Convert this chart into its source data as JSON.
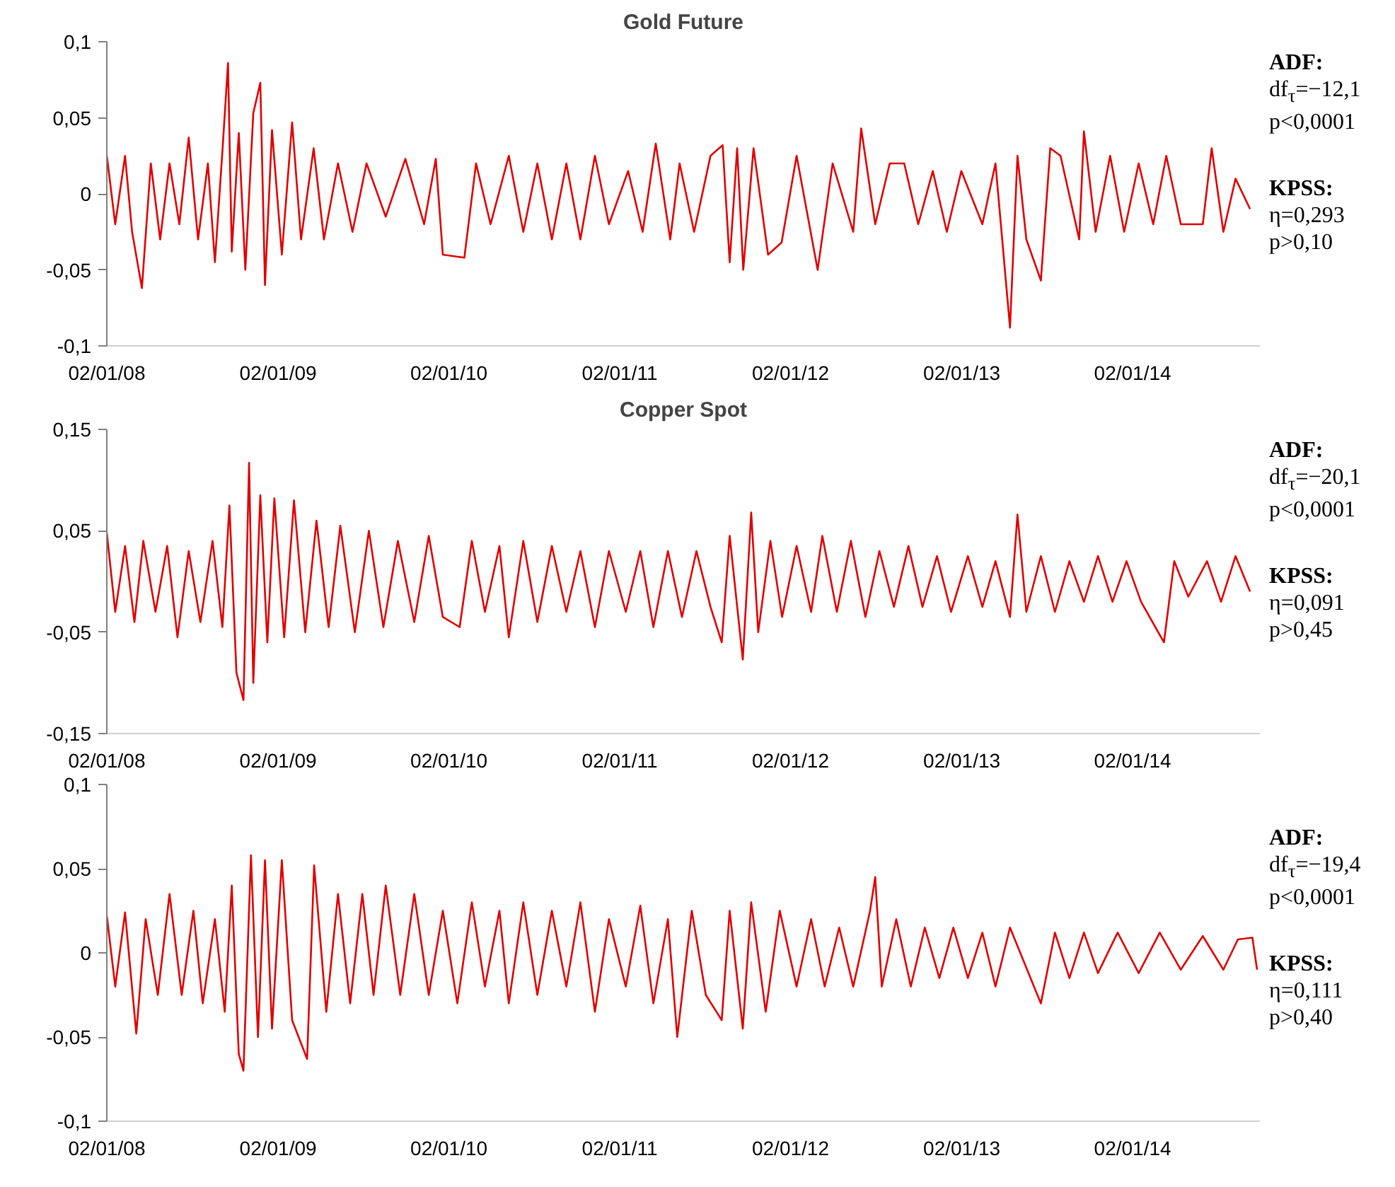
{
  "chart_data": [
    {
      "type": "line",
      "title": "Gold Future",
      "color": "#e00000",
      "x": [
        "2008-01-02",
        "2008-01-20",
        "2008-02-10",
        "2008-02-25",
        "2008-03-17",
        "2008-04-05",
        "2008-04-25",
        "2008-05-15",
        "2008-06-05",
        "2008-06-25",
        "2008-07-15",
        "2008-08-05",
        "2008-08-20",
        "2008-09-05",
        "2008-09-17",
        "2008-09-25",
        "2008-10-10",
        "2008-10-24",
        "2008-11-10",
        "2008-11-25",
        "2008-12-05",
        "2008-12-20",
        "2009-01-10",
        "2009-02-01",
        "2009-02-20",
        "2009-03-19",
        "2009-04-10",
        "2009-05-10",
        "2009-06-10",
        "2009-07-10",
        "2009-08-20",
        "2009-10-01",
        "2009-11-10",
        "2009-12-05",
        "2009-12-20",
        "2010-02-04",
        "2010-03-01",
        "2010-04-01",
        "2010-05-10",
        "2010-06-10",
        "2010-07-10",
        "2010-08-10",
        "2010-09-10",
        "2010-10-10",
        "2010-11-10",
        "2010-12-10",
        "2011-01-20",
        "2011-02-20",
        "2011-03-20",
        "2011-04-20",
        "2011-05-10",
        "2011-06-10",
        "2011-07-15",
        "2011-08-10",
        "2011-08-25",
        "2011-09-10",
        "2011-09-23",
        "2011-10-15",
        "2011-11-15",
        "2011-12-14",
        "2012-01-15",
        "2012-02-29",
        "2012-04-01",
        "2012-05-15",
        "2012-06-01",
        "2012-07-01",
        "2012-08-01",
        "2012-09-01",
        "2012-10-01",
        "2012-11-01",
        "2012-12-01",
        "2013-01-01",
        "2013-02-15",
        "2013-03-15",
        "2013-04-15",
        "2013-05-01",
        "2013-05-20",
        "2013-06-20",
        "2013-07-10",
        "2013-08-01",
        "2013-09-10",
        "2013-09-20",
        "2013-10-15",
        "2013-11-15",
        "2013-12-15",
        "2014-01-15",
        "2014-02-15",
        "2014-03-15",
        "2014-04-15",
        "2014-06-01",
        "2014-06-20",
        "2014-07-15",
        "2014-08-10",
        "2014-09-10"
      ],
      "values": [
        0.025,
        -0.02,
        0.025,
        -0.025,
        -0.062,
        0.02,
        -0.03,
        0.02,
        -0.02,
        0.037,
        -0.03,
        0.02,
        -0.045,
        0.028,
        0.086,
        -0.038,
        0.04,
        -0.05,
        0.053,
        0.073,
        -0.06,
        0.042,
        -0.04,
        0.047,
        -0.03,
        0.03,
        -0.03,
        0.02,
        -0.025,
        0.02,
        -0.015,
        0.023,
        -0.02,
        0.023,
        -0.04,
        -0.042,
        0.02,
        -0.02,
        0.025,
        -0.025,
        0.02,
        -0.03,
        0.02,
        -0.03,
        0.025,
        -0.02,
        0.015,
        -0.025,
        0.033,
        -0.03,
        0.02,
        -0.025,
        0.025,
        0.032,
        -0.045,
        0.03,
        -0.05,
        0.03,
        -0.04,
        -0.032,
        0.025,
        -0.05,
        0.02,
        -0.025,
        0.043,
        -0.02,
        0.02,
        0.02,
        -0.02,
        0.015,
        -0.025,
        0.015,
        -0.02,
        0.02,
        -0.088,
        0.025,
        -0.03,
        -0.057,
        0.03,
        0.025,
        -0.03,
        0.041,
        -0.025,
        0.025,
        -0.025,
        0.02,
        -0.02,
        0.025,
        -0.02,
        -0.02,
        0.03,
        -0.025,
        0.01,
        -0.01
      ],
      "xlim": [
        "2008-01-02",
        "2014-10-01"
      ],
      "xticks": [
        {
          "value": "2008-01-02",
          "label": "02/01/08"
        },
        {
          "value": "2009-01-02",
          "label": "02/01/09"
        },
        {
          "value": "2010-01-02",
          "label": "02/01/10"
        },
        {
          "value": "2011-01-02",
          "label": "02/01/11"
        },
        {
          "value": "2012-01-02",
          "label": "02/01/12"
        },
        {
          "value": "2013-01-02",
          "label": "02/01/13"
        },
        {
          "value": "2014-01-02",
          "label": "02/01/14"
        }
      ],
      "ylim": [
        -0.1,
        0.1
      ],
      "yticks": [
        {
          "value": -0.1,
          "label": "-0,1"
        },
        {
          "value": -0.05,
          "label": "-0,05"
        },
        0,
        {
          "value": 0.05,
          "label": "0,05"
        },
        {
          "value": 0.1,
          "label": "0,1"
        }
      ],
      "annotations": [
        "ADF:",
        "df$_{τ}$=−12,1",
        "p<0,0001",
        "KPSS:",
        "η=0,293",
        "p>0,10"
      ]
    },
    {
      "type": "line",
      "title": "Copper Spot",
      "color": "#e00000",
      "x": [
        "2008-01-02",
        "2008-01-20",
        "2008-02-10",
        "2008-03-01",
        "2008-03-20",
        "2008-04-15",
        "2008-05-10",
        "2008-06-01",
        "2008-06-25",
        "2008-07-20",
        "2008-08-15",
        "2008-09-05",
        "2008-09-20",
        "2008-10-05",
        "2008-10-20",
        "2008-11-01",
        "2008-11-10",
        "2008-11-25",
        "2008-12-10",
        "2008-12-25",
        "2009-01-15",
        "2009-02-05",
        "2009-03-01",
        "2009-03-25",
        "2009-04-20",
        "2009-05-15",
        "2009-06-15",
        "2009-07-15",
        "2009-08-15",
        "2009-09-15",
        "2009-10-20",
        "2009-11-20",
        "2009-12-20",
        "2010-01-25",
        "2010-02-20",
        "2010-03-20",
        "2010-04-20",
        "2010-05-10",
        "2010-06-10",
        "2010-07-10",
        "2010-08-10",
        "2010-09-10",
        "2010-10-10",
        "2010-11-10",
        "2010-12-10",
        "2011-01-15",
        "2011-02-15",
        "2011-03-15",
        "2011-04-15",
        "2011-05-15",
        "2011-06-15",
        "2011-07-15",
        "2011-08-08",
        "2011-08-25",
        "2011-09-22",
        "2011-10-10",
        "2011-10-25",
        "2011-11-20",
        "2011-12-15",
        "2012-01-15",
        "2012-02-15",
        "2012-03-10",
        "2012-04-10",
        "2012-05-10",
        "2012-06-10",
        "2012-07-10",
        "2012-08-10",
        "2012-09-10",
        "2012-10-10",
        "2012-11-10",
        "2012-12-10",
        "2013-01-15",
        "2013-02-15",
        "2013-03-15",
        "2013-04-15",
        "2013-05-01",
        "2013-05-20",
        "2013-06-20",
        "2013-07-20",
        "2013-08-20",
        "2013-09-20",
        "2013-10-20",
        "2013-11-20",
        "2013-12-20",
        "2014-01-20",
        "2014-03-10",
        "2014-04-01",
        "2014-05-01",
        "2014-06-10",
        "2014-07-10",
        "2014-08-10",
        "2014-09-10"
      ],
      "values": [
        0.048,
        -0.03,
        0.035,
        -0.04,
        0.04,
        -0.03,
        0.035,
        -0.055,
        0.03,
        -0.04,
        0.04,
        -0.045,
        0.075,
        -0.09,
        -0.117,
        0.117,
        -0.1,
        0.085,
        -0.06,
        0.082,
        -0.055,
        0.08,
        -0.05,
        0.06,
        -0.045,
        0.055,
        -0.05,
        0.05,
        -0.045,
        0.04,
        -0.04,
        0.045,
        -0.035,
        -0.045,
        0.04,
        -0.03,
        0.035,
        -0.055,
        0.04,
        -0.04,
        0.035,
        -0.03,
        0.03,
        -0.045,
        0.03,
        -0.03,
        0.03,
        -0.045,
        0.03,
        -0.035,
        0.03,
        -0.025,
        -0.06,
        0.045,
        -0.077,
        0.068,
        -0.05,
        0.04,
        -0.035,
        0.035,
        -0.03,
        0.045,
        -0.03,
        0.04,
        -0.035,
        0.03,
        -0.025,
        0.035,
        -0.025,
        0.025,
        -0.03,
        0.025,
        -0.025,
        0.02,
        -0.035,
        0.066,
        -0.03,
        0.025,
        -0.03,
        0.02,
        -0.02,
        0.025,
        -0.02,
        0.02,
        -0.02,
        -0.06,
        0.02,
        -0.015,
        0.02,
        -0.02,
        0.025,
        -0.01
      ],
      "xlim": [
        "2008-01-02",
        "2014-10-01"
      ],
      "xticks": [
        {
          "value": "2008-01-02",
          "label": "02/01/08"
        },
        {
          "value": "2009-01-02",
          "label": "02/01/09"
        },
        {
          "value": "2010-01-02",
          "label": "02/01/10"
        },
        {
          "value": "2011-01-02",
          "label": "02/01/11"
        },
        {
          "value": "2012-01-02",
          "label": "02/01/12"
        },
        {
          "value": "2013-01-02",
          "label": "02/01/13"
        },
        {
          "value": "2014-01-02",
          "label": "02/01/14"
        }
      ],
      "ylim": [
        -0.15,
        0.15
      ],
      "yticks": [
        {
          "value": -0.15,
          "label": "-0,15"
        },
        {
          "value": -0.05,
          "label": "-0,05"
        },
        {
          "value": 0.05,
          "label": "0,05"
        },
        {
          "value": 0.15,
          "label": "0,15"
        }
      ],
      "annotations": [
        "ADF:",
        "df$_{τ}$=−20,1",
        "p<0,0001",
        "KPSS:",
        "η=0,091",
        "p>0,45"
      ]
    },
    {
      "type": "line",
      "color": "#e00000",
      "x": [
        "2008-01-02",
        "2008-01-20",
        "2008-02-10",
        "2008-03-05",
        "2008-03-25",
        "2008-04-20",
        "2008-05-15",
        "2008-06-10",
        "2008-07-05",
        "2008-07-25",
        "2008-08-20",
        "2008-09-10",
        "2008-09-25",
        "2008-10-10",
        "2008-10-20",
        "2008-11-05",
        "2008-11-20",
        "2008-12-05",
        "2008-12-20",
        "2009-01-10",
        "2009-02-01",
        "2009-03-05",
        "2009-03-20",
        "2009-04-15",
        "2009-05-10",
        "2009-06-05",
        "2009-07-01",
        "2009-07-25",
        "2009-08-20",
        "2009-09-20",
        "2009-10-20",
        "2009-11-20",
        "2009-12-20",
        "2010-01-20",
        "2010-02-20",
        "2010-03-20",
        "2010-04-20",
        "2010-05-10",
        "2010-06-10",
        "2010-07-10",
        "2010-08-10",
        "2010-09-10",
        "2010-10-10",
        "2010-11-10",
        "2010-12-10",
        "2011-01-15",
        "2011-02-15",
        "2011-03-15",
        "2011-04-15",
        "2011-05-05",
        "2011-06-05",
        "2011-07-05",
        "2011-08-08",
        "2011-08-25",
        "2011-09-22",
        "2011-10-10",
        "2011-11-10",
        "2011-12-10",
        "2012-01-15",
        "2012-02-15",
        "2012-03-15",
        "2012-04-15",
        "2012-05-15",
        "2012-06-20",
        "2012-07-01",
        "2012-07-15",
        "2012-08-15",
        "2012-09-15",
        "2012-10-15",
        "2012-11-15",
        "2012-12-15",
        "2013-01-15",
        "2013-02-15",
        "2013-03-15",
        "2013-04-15",
        "2013-06-20",
        "2013-07-20",
        "2013-08-20",
        "2013-09-20",
        "2013-10-20",
        "2013-12-01",
        "2014-01-15",
        "2014-03-01",
        "2014-04-15",
        "2014-06-01",
        "2014-07-15",
        "2014-08-15",
        "2014-09-15",
        "2014-09-25"
      ],
      "values": [
        0.022,
        -0.02,
        0.024,
        -0.048,
        0.02,
        -0.025,
        0.035,
        -0.025,
        0.025,
        -0.03,
        0.02,
        -0.035,
        0.04,
        -0.06,
        -0.07,
        0.058,
        -0.05,
        0.055,
        -0.045,
        0.055,
        -0.04,
        -0.063,
        0.052,
        -0.035,
        0.035,
        -0.03,
        0.035,
        -0.025,
        0.04,
        -0.025,
        0.035,
        -0.025,
        0.025,
        -0.03,
        0.03,
        -0.02,
        0.025,
        -0.03,
        0.03,
        -0.025,
        0.025,
        -0.02,
        0.03,
        -0.035,
        0.02,
        -0.02,
        0.028,
        -0.03,
        0.02,
        -0.05,
        0.025,
        -0.025,
        -0.04,
        0.025,
        -0.045,
        0.03,
        -0.035,
        0.025,
        -0.02,
        0.02,
        -0.02,
        0.015,
        -0.02,
        0.025,
        0.045,
        -0.02,
        0.02,
        -0.02,
        0.015,
        -0.015,
        0.015,
        -0.015,
        0.012,
        -0.02,
        0.015,
        -0.03,
        0.012,
        -0.015,
        0.012,
        -0.012,
        0.012,
        -0.012,
        0.012,
        -0.01,
        0.01,
        -0.01,
        0.008,
        0.009,
        -0.01
      ],
      "xlim": [
        "2008-01-02",
        "2014-10-01"
      ],
      "xticks": [
        {
          "value": "2008-01-02",
          "label": "02/01/08"
        },
        {
          "value": "2009-01-02",
          "label": "02/01/09"
        },
        {
          "value": "2010-01-02",
          "label": "02/01/10"
        },
        {
          "value": "2011-01-02",
          "label": "02/01/11"
        },
        {
          "value": "2012-01-02",
          "label": "02/01/12"
        },
        {
          "value": "2013-01-02",
          "label": "02/01/13"
        },
        {
          "value": "2014-01-02",
          "label": "02/01/14"
        }
      ],
      "ylim": [
        -0.1,
        0.1
      ],
      "yticks": [
        {
          "value": -0.1,
          "label": "-0,1"
        },
        {
          "value": -0.05,
          "label": "-0,05"
        },
        0,
        {
          "value": 0.05,
          "label": "0,05"
        },
        {
          "value": 0.1,
          "label": "0,1"
        }
      ],
      "annotations": [
        "ADF:",
        "df$_{τ}$=−19,4",
        "p<0,0001",
        "KPSS:",
        "η=0,111",
        "p>0,40"
      ]
    }
  ]
}
